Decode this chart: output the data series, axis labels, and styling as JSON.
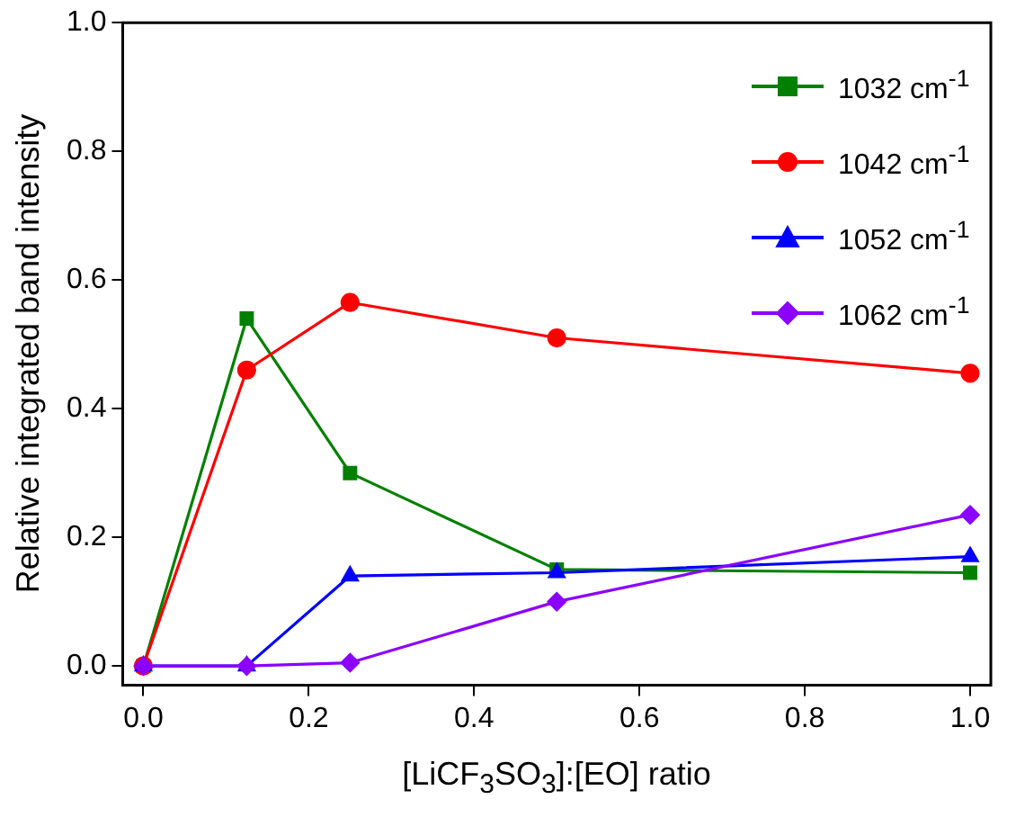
{
  "chart_data": {
    "type": "line",
    "xlabel": "[LiCF$_{3}$SO$_{3}$]:[EO] ratio",
    "ylabel": "Relative integrated band intensity",
    "x": [
      0,
      0.125,
      0.25,
      0.5,
      1.0
    ],
    "series": [
      {
        "name": "1032 cm$^{-1}$",
        "color": "#008000",
        "marker": "square",
        "values": [
          0,
          0.54,
          0.3,
          0.15,
          0.145
        ]
      },
      {
        "name": "1042 cm$^{-1}$",
        "color": "#ff0000",
        "marker": "circle",
        "values": [
          0,
          0.46,
          0.565,
          0.51,
          0.455
        ]
      },
      {
        "name": "1052 cm$^{-1}$",
        "color": "#0000ff",
        "marker": "triangle",
        "values": [
          0,
          0,
          0.14,
          0.145,
          0.17
        ]
      },
      {
        "name": "1062 cm$^{-1}$",
        "color": "#8b00ff",
        "marker": "diamond",
        "values": [
          0,
          0,
          0.005,
          0.1,
          0.235
        ]
      }
    ],
    "xlim": [
      -0.025,
      1.025
    ],
    "xticks": [
      {
        "value": 0,
        "label": "0.0"
      },
      0.2,
      0.4,
      0.6,
      0.8,
      {
        "value": 1,
        "label": "1.0"
      }
    ],
    "ylim": [
      -0.03,
      1.0
    ],
    "yticks": [
      {
        "value": 0,
        "label": "0.0"
      },
      0.2,
      0.4,
      0.6,
      0.8,
      {
        "value": 1,
        "label": "1.0"
      }
    ],
    "grid": false,
    "legend": "top right"
  }
}
